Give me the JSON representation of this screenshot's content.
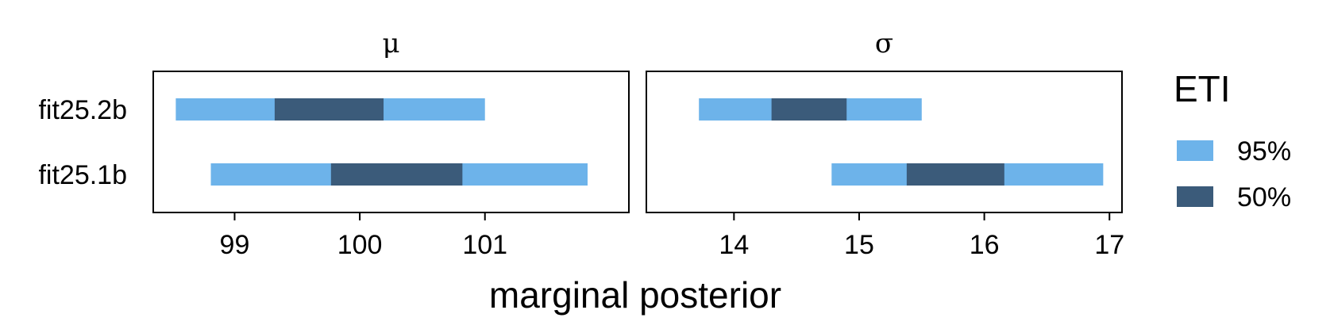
{
  "chart_data": {
    "type": "interval",
    "xlabel": "marginal posterior",
    "rows": [
      "fit25.2b",
      "fit25.1b"
    ],
    "legend": {
      "title": "ETI",
      "position": "right",
      "items": [
        {
          "label": "95%",
          "color": "#6db3ea"
        },
        {
          "label": "50%",
          "color": "#3b5b7a"
        }
      ]
    },
    "panels": [
      {
        "title": "μ",
        "xlim": [
          98.35,
          102.15
        ],
        "ticks": [
          99,
          100,
          101
        ],
        "tick_labels": [
          "99",
          "100",
          "101"
        ],
        "intervals": [
          {
            "row": "fit25.2b",
            "eti95": [
              98.53,
              101.0
            ],
            "eti50": [
              99.32,
              100.19
            ]
          },
          {
            "row": "fit25.1b",
            "eti95": [
              98.81,
              101.82
            ],
            "eti50": [
              99.77,
              100.82
            ]
          }
        ]
      },
      {
        "title": "σ",
        "xlim": [
          13.3,
          17.1
        ],
        "ticks": [
          14,
          15,
          16,
          17
        ],
        "tick_labels": [
          "14",
          "15",
          "16",
          "17"
        ],
        "intervals": [
          {
            "row": "fit25.2b",
            "eti95": [
              13.72,
              15.5
            ],
            "eti50": [
              14.3,
              14.9
            ]
          },
          {
            "row": "fit25.1b",
            "eti95": [
              14.78,
              16.95
            ],
            "eti50": [
              15.38,
              16.16
            ]
          }
        ]
      }
    ]
  }
}
